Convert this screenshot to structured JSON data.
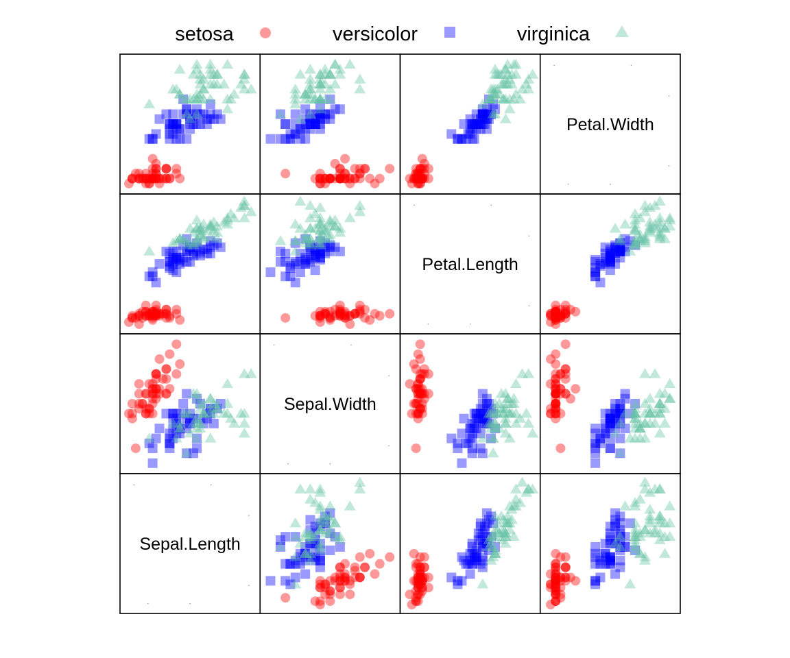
{
  "chart_data": {
    "type": "scatter",
    "title": "",
    "variables": [
      "Sepal.Length",
      "Sepal.Width",
      "Petal.Length",
      "Petal.Width"
    ],
    "ranges": {
      "Sepal.Length": [
        4.2,
        8.0
      ],
      "Sepal.Width": [
        1.9,
        4.5
      ],
      "Petal.Length": [
        0.8,
        7.0
      ],
      "Petal.Width": [
        0.0,
        2.6
      ]
    },
    "grid": false,
    "legend_position": "top",
    "series": [
      {
        "name": "setosa",
        "marker": "circle",
        "color": "#ff0000",
        "points": [
          [
            5.1,
            3.5,
            1.4,
            0.2
          ],
          [
            4.9,
            3.0,
            1.4,
            0.2
          ],
          [
            4.7,
            3.2,
            1.3,
            0.2
          ],
          [
            4.6,
            3.1,
            1.5,
            0.2
          ],
          [
            5.0,
            3.6,
            1.4,
            0.2
          ],
          [
            5.4,
            3.9,
            1.7,
            0.4
          ],
          [
            4.6,
            3.4,
            1.4,
            0.3
          ],
          [
            5.0,
            3.4,
            1.5,
            0.2
          ],
          [
            4.4,
            2.9,
            1.4,
            0.2
          ],
          [
            4.9,
            3.1,
            1.5,
            0.1
          ],
          [
            5.4,
            3.7,
            1.5,
            0.2
          ],
          [
            4.8,
            3.4,
            1.6,
            0.2
          ],
          [
            4.8,
            3.0,
            1.4,
            0.1
          ],
          [
            4.3,
            3.0,
            1.1,
            0.1
          ],
          [
            5.8,
            4.0,
            1.2,
            0.2
          ],
          [
            5.7,
            4.4,
            1.5,
            0.4
          ],
          [
            5.4,
            3.9,
            1.3,
            0.4
          ],
          [
            5.1,
            3.5,
            1.4,
            0.3
          ],
          [
            5.7,
            3.8,
            1.7,
            0.3
          ],
          [
            5.1,
            3.8,
            1.5,
            0.3
          ],
          [
            5.4,
            3.4,
            1.7,
            0.2
          ],
          [
            5.1,
            3.7,
            1.5,
            0.4
          ],
          [
            4.6,
            3.6,
            1.0,
            0.2
          ],
          [
            5.1,
            3.3,
            1.7,
            0.5
          ],
          [
            4.8,
            3.4,
            1.9,
            0.2
          ],
          [
            5.0,
            3.0,
            1.6,
            0.2
          ],
          [
            5.0,
            3.4,
            1.6,
            0.4
          ],
          [
            5.2,
            3.5,
            1.5,
            0.2
          ],
          [
            5.2,
            3.4,
            1.4,
            0.2
          ],
          [
            4.7,
            3.2,
            1.6,
            0.2
          ],
          [
            4.8,
            3.1,
            1.6,
            0.2
          ],
          [
            5.4,
            3.4,
            1.5,
            0.4
          ],
          [
            5.2,
            4.1,
            1.5,
            0.1
          ],
          [
            5.5,
            4.2,
            1.4,
            0.2
          ],
          [
            4.9,
            3.1,
            1.5,
            0.2
          ],
          [
            5.0,
            3.2,
            1.2,
            0.2
          ],
          [
            5.5,
            3.5,
            1.3,
            0.2
          ],
          [
            4.9,
            3.6,
            1.4,
            0.1
          ],
          [
            4.4,
            3.0,
            1.3,
            0.2
          ],
          [
            5.1,
            3.4,
            1.5,
            0.2
          ],
          [
            5.0,
            3.5,
            1.3,
            0.3
          ],
          [
            4.5,
            2.3,
            1.3,
            0.3
          ],
          [
            4.4,
            3.2,
            1.3,
            0.2
          ],
          [
            5.0,
            3.5,
            1.6,
            0.6
          ],
          [
            5.1,
            3.8,
            1.9,
            0.4
          ],
          [
            4.8,
            3.0,
            1.4,
            0.3
          ],
          [
            5.1,
            3.8,
            1.6,
            0.2
          ],
          [
            4.6,
            3.2,
            1.4,
            0.2
          ],
          [
            5.3,
            3.7,
            1.5,
            0.2
          ],
          [
            5.0,
            3.3,
            1.4,
            0.2
          ]
        ]
      },
      {
        "name": "versicolor",
        "marker": "square",
        "color": "#0000ff",
        "points": [
          [
            7.0,
            3.2,
            4.7,
            1.4
          ],
          [
            6.4,
            3.2,
            4.5,
            1.5
          ],
          [
            6.9,
            3.1,
            4.9,
            1.5
          ],
          [
            5.5,
            2.3,
            4.0,
            1.3
          ],
          [
            6.5,
            2.8,
            4.6,
            1.5
          ],
          [
            5.7,
            2.8,
            4.5,
            1.3
          ],
          [
            6.3,
            3.3,
            4.7,
            1.6
          ],
          [
            4.9,
            2.4,
            3.3,
            1.0
          ],
          [
            6.6,
            2.9,
            4.6,
            1.3
          ],
          [
            5.2,
            2.7,
            3.9,
            1.4
          ],
          [
            5.0,
            2.0,
            3.5,
            1.0
          ],
          [
            5.9,
            3.0,
            4.2,
            1.5
          ],
          [
            6.0,
            2.2,
            4.0,
            1.0
          ],
          [
            6.1,
            2.9,
            4.7,
            1.4
          ],
          [
            5.6,
            2.9,
            3.6,
            1.3
          ],
          [
            6.7,
            3.1,
            4.4,
            1.4
          ],
          [
            5.6,
            3.0,
            4.5,
            1.5
          ],
          [
            5.8,
            2.7,
            4.1,
            1.0
          ],
          [
            6.2,
            2.2,
            4.5,
            1.5
          ],
          [
            5.6,
            2.5,
            3.9,
            1.1
          ],
          [
            5.9,
            3.2,
            4.8,
            1.8
          ],
          [
            6.1,
            2.8,
            4.0,
            1.3
          ],
          [
            6.3,
            2.5,
            4.9,
            1.5
          ],
          [
            6.1,
            2.8,
            4.7,
            1.2
          ],
          [
            6.4,
            2.9,
            4.3,
            1.3
          ],
          [
            6.6,
            3.0,
            4.4,
            1.4
          ],
          [
            6.8,
            2.8,
            4.8,
            1.4
          ],
          [
            6.7,
            3.0,
            5.0,
            1.7
          ],
          [
            6.0,
            2.9,
            4.5,
            1.5
          ],
          [
            5.7,
            2.6,
            3.5,
            1.0
          ],
          [
            5.5,
            2.4,
            3.8,
            1.1
          ],
          [
            5.5,
            2.4,
            3.7,
            1.0
          ],
          [
            5.8,
            2.7,
            3.9,
            1.2
          ],
          [
            6.0,
            2.7,
            5.1,
            1.6
          ],
          [
            5.4,
            3.0,
            4.5,
            1.5
          ],
          [
            6.0,
            3.4,
            4.5,
            1.6
          ],
          [
            6.7,
            3.1,
            4.7,
            1.5
          ],
          [
            6.3,
            2.3,
            4.4,
            1.3
          ],
          [
            5.6,
            3.0,
            4.1,
            1.3
          ],
          [
            5.5,
            2.5,
            4.0,
            1.3
          ],
          [
            5.5,
            2.6,
            4.4,
            1.2
          ],
          [
            6.1,
            3.0,
            4.6,
            1.4
          ],
          [
            5.8,
            2.6,
            4.0,
            1.2
          ],
          [
            5.0,
            2.3,
            3.3,
            1.0
          ],
          [
            5.6,
            2.7,
            4.2,
            1.3
          ],
          [
            5.7,
            3.0,
            4.2,
            1.2
          ],
          [
            5.7,
            2.9,
            4.2,
            1.3
          ],
          [
            6.2,
            2.9,
            4.3,
            1.3
          ],
          [
            5.1,
            2.5,
            3.0,
            1.1
          ],
          [
            5.7,
            2.8,
            4.1,
            1.3
          ]
        ]
      },
      {
        "name": "virginica",
        "marker": "triangle",
        "color": "#66c2a5",
        "points": [
          [
            6.3,
            3.3,
            6.0,
            2.5
          ],
          [
            5.8,
            2.7,
            5.1,
            1.9
          ],
          [
            7.1,
            3.0,
            5.9,
            2.1
          ],
          [
            6.3,
            2.9,
            5.6,
            1.8
          ],
          [
            6.5,
            3.0,
            5.8,
            2.2
          ],
          [
            7.6,
            3.0,
            6.6,
            2.1
          ],
          [
            4.9,
            2.5,
            4.5,
            1.7
          ],
          [
            7.3,
            2.9,
            6.3,
            1.8
          ],
          [
            6.7,
            2.5,
            5.8,
            1.8
          ],
          [
            7.2,
            3.6,
            6.1,
            2.5
          ],
          [
            6.5,
            3.2,
            5.1,
            2.0
          ],
          [
            6.4,
            2.7,
            5.3,
            1.9
          ],
          [
            6.8,
            3.0,
            5.5,
            2.1
          ],
          [
            5.7,
            2.5,
            5.0,
            2.0
          ],
          [
            5.8,
            2.8,
            5.1,
            2.4
          ],
          [
            6.4,
            3.2,
            5.3,
            2.3
          ],
          [
            6.5,
            3.0,
            5.5,
            1.8
          ],
          [
            7.7,
            3.8,
            6.7,
            2.2
          ],
          [
            7.7,
            2.6,
            6.9,
            2.3
          ],
          [
            6.0,
            2.2,
            5.0,
            1.5
          ],
          [
            6.9,
            3.2,
            5.7,
            2.3
          ],
          [
            5.6,
            2.8,
            4.9,
            2.0
          ],
          [
            7.7,
            2.8,
            6.7,
            2.0
          ],
          [
            6.3,
            2.7,
            4.9,
            1.8
          ],
          [
            6.7,
            3.3,
            5.7,
            2.1
          ],
          [
            7.2,
            3.2,
            6.0,
            1.8
          ],
          [
            6.2,
            2.8,
            4.8,
            1.8
          ],
          [
            6.1,
            3.0,
            4.9,
            1.8
          ],
          [
            6.4,
            2.8,
            5.6,
            2.1
          ],
          [
            7.2,
            3.0,
            5.8,
            1.6
          ],
          [
            7.4,
            2.8,
            6.1,
            1.9
          ],
          [
            7.9,
            3.8,
            6.4,
            2.0
          ],
          [
            6.4,
            2.8,
            5.6,
            2.2
          ],
          [
            6.3,
            2.8,
            5.1,
            1.5
          ],
          [
            6.1,
            2.6,
            5.6,
            1.4
          ],
          [
            7.7,
            3.0,
            6.1,
            2.3
          ],
          [
            6.3,
            3.4,
            5.6,
            2.4
          ],
          [
            6.4,
            3.1,
            5.5,
            1.8
          ],
          [
            6.0,
            3.0,
            4.8,
            1.8
          ],
          [
            6.9,
            3.1,
            5.4,
            2.1
          ],
          [
            6.7,
            3.1,
            5.6,
            2.4
          ],
          [
            6.9,
            3.1,
            5.1,
            2.3
          ],
          [
            5.8,
            2.7,
            5.1,
            1.9
          ],
          [
            6.8,
            3.2,
            5.9,
            2.3
          ],
          [
            6.7,
            3.3,
            5.7,
            2.5
          ],
          [
            6.7,
            3.0,
            5.2,
            2.3
          ],
          [
            6.3,
            2.5,
            5.0,
            1.9
          ],
          [
            6.5,
            3.0,
            5.2,
            2.0
          ],
          [
            6.2,
            3.4,
            5.4,
            2.3
          ],
          [
            5.9,
            3.0,
            5.1,
            1.8
          ]
        ]
      }
    ]
  }
}
